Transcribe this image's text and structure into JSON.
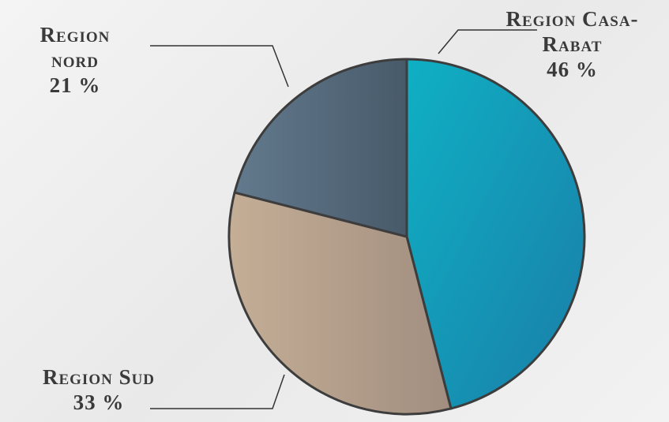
{
  "chart_data": {
    "type": "pie",
    "categories": [
      "Region Casa-Rabat",
      "Region Sud",
      "Region nord"
    ],
    "values": [
      46,
      33,
      21
    ],
    "value_labels": [
      "46 %",
      "33 %",
      "21 %"
    ],
    "colors": [
      "#0fa3bd",
      "#b5a08a",
      "#556b7e"
    ]
  }
}
